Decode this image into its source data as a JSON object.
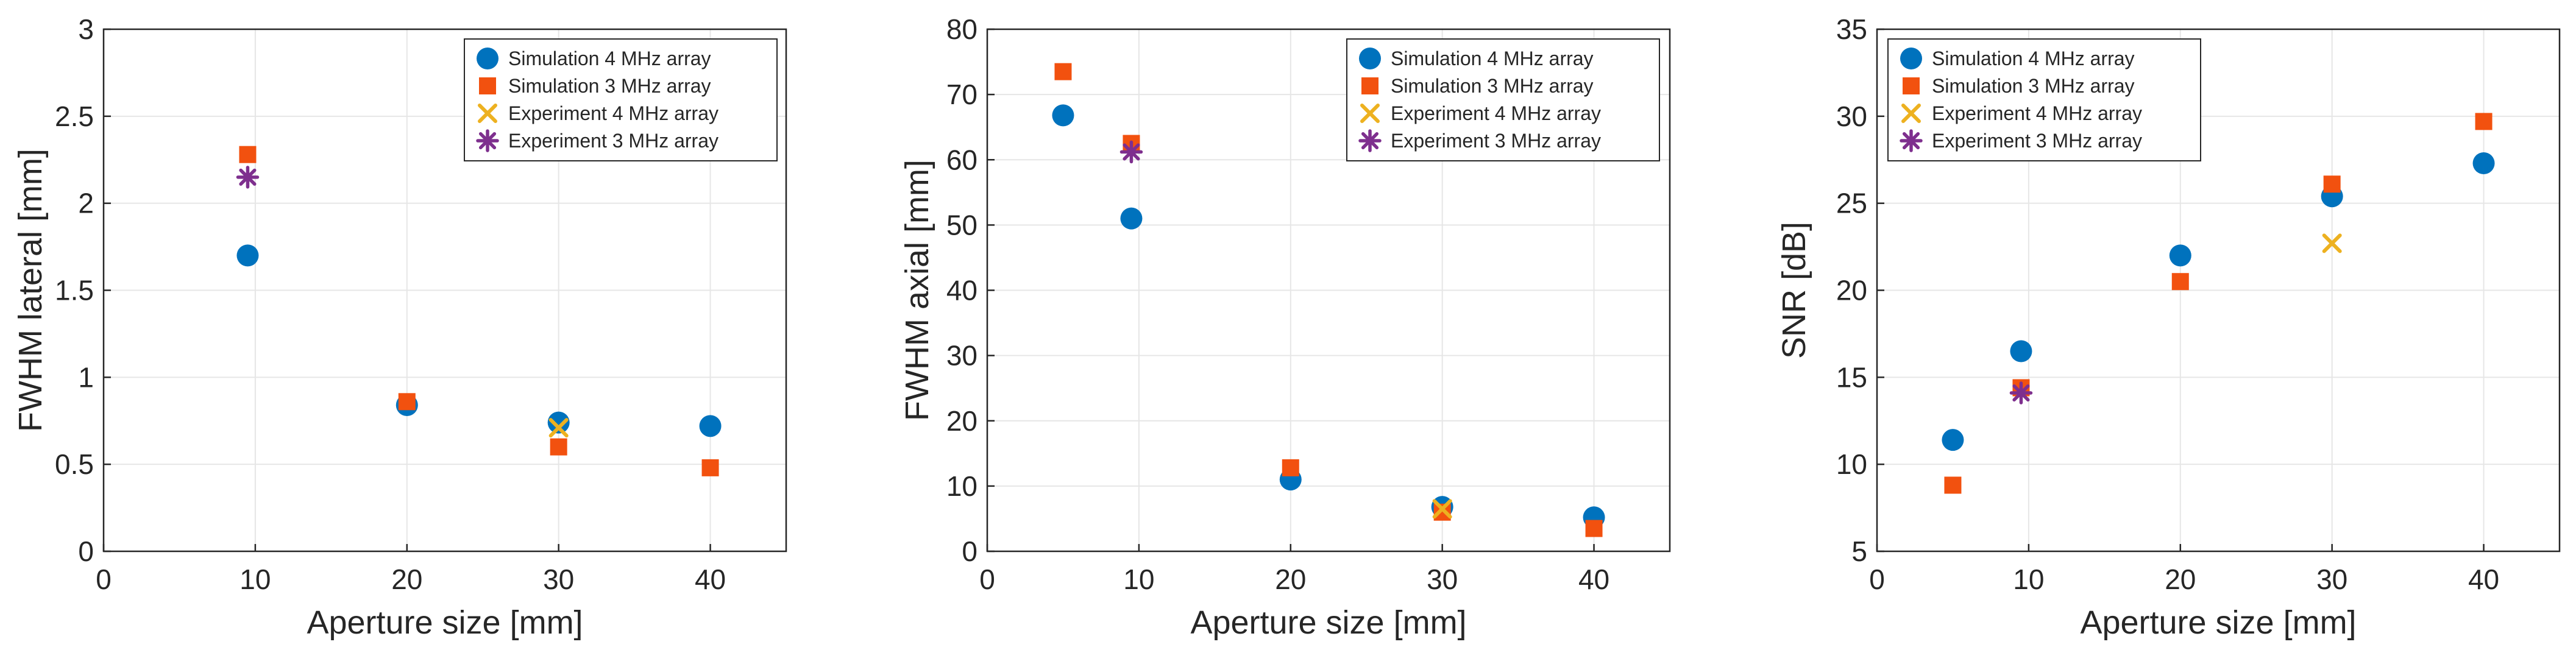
{
  "colors": {
    "sim4": "#0072BD",
    "sim3": "#F2510F",
    "exp4": "#EDB120",
    "exp3": "#7E2F8E",
    "axis": "#262626",
    "grid": "#e6e6e6"
  },
  "legend_entries": [
    {
      "key": "sim4",
      "label": "Simulation 4 MHz array",
      "marker": "circle"
    },
    {
      "key": "sim3",
      "label": "Simulation 3 MHz array",
      "marker": "square"
    },
    {
      "key": "exp4",
      "label": "Experiment 4 MHz array",
      "marker": "x"
    },
    {
      "key": "exp3",
      "label": "Experiment 3 MHz array",
      "marker": "asterisk"
    }
  ],
  "chart_data": [
    {
      "type": "scatter",
      "xlabel": "Aperture size [mm]",
      "ylabel": "FWHM lateral [mm]",
      "xlim": [
        0,
        45
      ],
      "ylim": [
        0,
        3
      ],
      "xticks": [
        "0",
        "10",
        "20",
        "30",
        "40"
      ],
      "yticks": [
        "0",
        "0.5",
        "1",
        "1.5",
        "2",
        "2.5",
        "3"
      ],
      "grid": true,
      "legend_position": "top-right",
      "series": [
        {
          "key": "sim4",
          "name": "Simulation 4 MHz array",
          "points": [
            [
              9.5,
              1.7
            ],
            [
              20,
              0.84
            ],
            [
              30,
              0.74
            ],
            [
              40,
              0.72
            ]
          ]
        },
        {
          "key": "sim3",
          "name": "Simulation 3 MHz array",
          "points": [
            [
              9.5,
              2.28
            ],
            [
              20,
              0.86
            ],
            [
              30,
              0.6
            ],
            [
              40,
              0.48
            ]
          ]
        },
        {
          "key": "exp4",
          "name": "Experiment 4 MHz array",
          "points": [
            [
              30,
              0.71
            ]
          ]
        },
        {
          "key": "exp3",
          "name": "Experiment 3 MHz array",
          "points": [
            [
              9.5,
              2.15
            ]
          ]
        }
      ]
    },
    {
      "type": "scatter",
      "xlabel": "Aperture size [mm]",
      "ylabel": "FWHM axial [mm]",
      "xlim": [
        0,
        45
      ],
      "ylim": [
        0,
        80
      ],
      "xticks": [
        "0",
        "10",
        "20",
        "30",
        "40"
      ],
      "yticks": [
        "0",
        "10",
        "20",
        "30",
        "40",
        "50",
        "60",
        "70",
        "80"
      ],
      "grid": true,
      "legend_position": "top-right",
      "series": [
        {
          "key": "sim4",
          "name": "Simulation 4 MHz array",
          "points": [
            [
              5,
              66.8
            ],
            [
              9.5,
              51
            ],
            [
              20,
              11
            ],
            [
              30,
              6.8
            ],
            [
              40,
              5.2
            ]
          ]
        },
        {
          "key": "sim3",
          "name": "Simulation 3 MHz array",
          "points": [
            [
              5,
              73.5
            ],
            [
              9.5,
              62.5
            ],
            [
              20,
              12.8
            ],
            [
              30,
              6
            ],
            [
              40,
              3.5
            ]
          ]
        },
        {
          "key": "exp4",
          "name": "Experiment 4 MHz array",
          "points": [
            [
              30,
              6.5
            ]
          ]
        },
        {
          "key": "exp3",
          "name": "Experiment 3 MHz array",
          "points": [
            [
              9.5,
              61.2
            ]
          ]
        }
      ]
    },
    {
      "type": "scatter",
      "xlabel": "Aperture size [mm]",
      "ylabel": "SNR [dB]",
      "xlim": [
        0,
        45
      ],
      "ylim": [
        5,
        35
      ],
      "xticks": [
        "0",
        "10",
        "20",
        "30",
        "40"
      ],
      "yticks": [
        "5",
        "10",
        "15",
        "20",
        "25",
        "30",
        "35"
      ],
      "grid": true,
      "legend_position": "top-left",
      "series": [
        {
          "key": "sim4",
          "name": "Simulation 4 MHz array",
          "points": [
            [
              5,
              11.4
            ],
            [
              9.5,
              16.5
            ],
            [
              20,
              22
            ],
            [
              30,
              25.4
            ],
            [
              40,
              27.3
            ]
          ]
        },
        {
          "key": "sim3",
          "name": "Simulation 3 MHz array",
          "points": [
            [
              5,
              8.8
            ],
            [
              9.5,
              14.4
            ],
            [
              20,
              20.5
            ],
            [
              30,
              26.1
            ],
            [
              40,
              29.7
            ]
          ]
        },
        {
          "key": "exp4",
          "name": "Experiment 4 MHz array",
          "points": [
            [
              30,
              22.7
            ]
          ]
        },
        {
          "key": "exp3",
          "name": "Experiment 3 MHz array",
          "points": [
            [
              9.5,
              14.1
            ]
          ]
        }
      ]
    }
  ]
}
